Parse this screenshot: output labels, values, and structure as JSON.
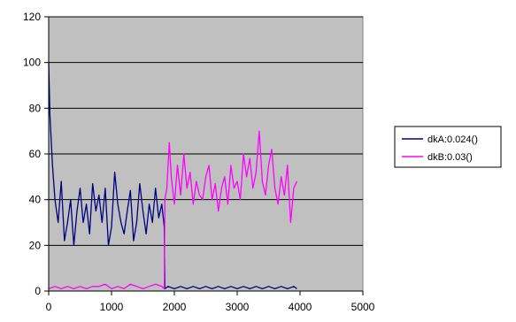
{
  "chart_data": {
    "type": "line",
    "title": "",
    "xlabel": "",
    "ylabel": "",
    "xlim": [
      0,
      5000
    ],
    "ylim": [
      0,
      120
    ],
    "x_ticks": [
      "0",
      "1000",
      "2000",
      "3000",
      "4000",
      "5000"
    ],
    "y_ticks": [
      "0",
      "20",
      "40",
      "60",
      "80",
      "100",
      "120"
    ],
    "grid": "horizontal",
    "plot_background": "#c0c0c0",
    "legend_position": "right",
    "series": [
      {
        "name": "dkA:0.024()",
        "color": "#000080",
        "x": [
          0,
          20,
          60,
          100,
          150,
          200,
          250,
          300,
          350,
          400,
          450,
          500,
          550,
          600,
          650,
          700,
          750,
          800,
          850,
          900,
          950,
          1000,
          1050,
          1100,
          1150,
          1200,
          1250,
          1300,
          1350,
          1400,
          1450,
          1500,
          1550,
          1600,
          1650,
          1700,
          1750,
          1800,
          1840,
          1850,
          1900,
          2000,
          2100,
          2200,
          2300,
          2400,
          2500,
          2600,
          2700,
          2800,
          2900,
          3000,
          3100,
          3200,
          3300,
          3400,
          3500,
          3600,
          3700,
          3800,
          3900,
          3950
        ],
        "y": [
          100,
          77,
          55,
          40,
          30,
          48,
          22,
          30,
          40,
          20,
          35,
          45,
          30,
          38,
          25,
          47,
          35,
          42,
          30,
          45,
          20,
          28,
          52,
          38,
          30,
          25,
          35,
          44,
          22,
          30,
          47,
          35,
          25,
          38,
          30,
          45,
          32,
          38,
          28,
          1,
          2,
          1,
          2,
          1,
          2,
          1,
          2,
          1,
          2,
          1,
          2,
          1,
          2,
          1,
          2,
          1,
          2,
          1,
          2,
          1,
          2,
          1
        ]
      },
      {
        "name": "dkB:0.03()",
        "color": "#ff00ff",
        "x": [
          0,
          100,
          200,
          300,
          400,
          500,
          600,
          700,
          800,
          900,
          1000,
          1100,
          1200,
          1300,
          1400,
          1500,
          1600,
          1700,
          1800,
          1840,
          1850,
          1880,
          1920,
          1950,
          2000,
          2050,
          2100,
          2150,
          2200,
          2250,
          2300,
          2350,
          2400,
          2450,
          2500,
          2550,
          2600,
          2650,
          2700,
          2750,
          2800,
          2850,
          2900,
          2950,
          3000,
          3050,
          3100,
          3150,
          3200,
          3250,
          3300,
          3350,
          3400,
          3450,
          3500,
          3550,
          3600,
          3650,
          3700,
          3750,
          3800,
          3850,
          3900,
          3950
        ],
        "y": [
          1,
          2,
          1,
          2,
          1,
          2,
          1,
          2,
          2,
          3,
          1,
          2,
          1,
          3,
          2,
          1,
          2,
          3,
          2,
          1,
          40,
          45,
          65,
          50,
          38,
          55,
          42,
          60,
          45,
          52,
          38,
          48,
          42,
          40,
          50,
          55,
          40,
          47,
          35,
          45,
          50,
          38,
          55,
          45,
          48,
          40,
          60,
          50,
          58,
          45,
          52,
          70,
          48,
          42,
          55,
          62,
          45,
          38,
          50,
          42,
          55,
          30,
          45,
          48
        ]
      }
    ]
  }
}
